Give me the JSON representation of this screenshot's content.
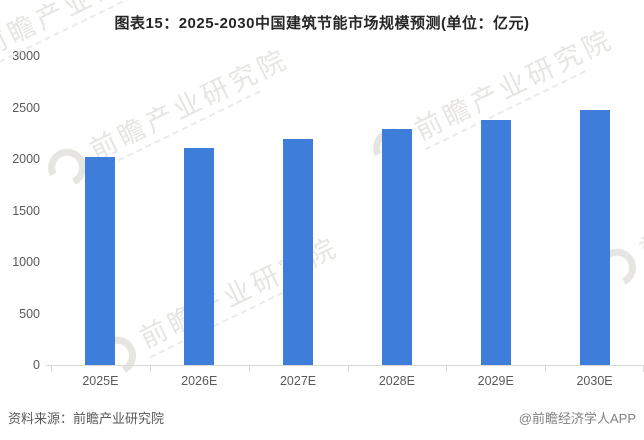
{
  "title": "图表15：2025-2030中国建筑节能市场规模预测(单位：亿元)",
  "footer": {
    "source_left": "资料来源：前瞻产业研究院",
    "credit_right": "@前瞻经济学人APP"
  },
  "watermark": {
    "text": "前瞻产业研究院"
  },
  "colors": {
    "bar": "#3e7eda",
    "axis_text": "#595959",
    "axis_line": "#d9d9d9",
    "title_text": "#262626",
    "footer_left": "#595959",
    "footer_right": "#808080",
    "watermark": "#d7d5d0"
  },
  "chart_data": {
    "type": "bar",
    "title": "图表15：2025-2030中国建筑节能市场规模预测(单位：亿元)",
    "categories": [
      "2025E",
      "2026E",
      "2027E",
      "2028E",
      "2029E",
      "2030E"
    ],
    "values": [
      2020,
      2110,
      2190,
      2290,
      2380,
      2480
    ],
    "unit": "亿元",
    "xlabel": "",
    "ylabel": "",
    "ylim": [
      0,
      3000
    ],
    "yticks": [
      0,
      500,
      1000,
      1500,
      2000,
      2500,
      3000
    ],
    "grid": false,
    "legend": false
  }
}
